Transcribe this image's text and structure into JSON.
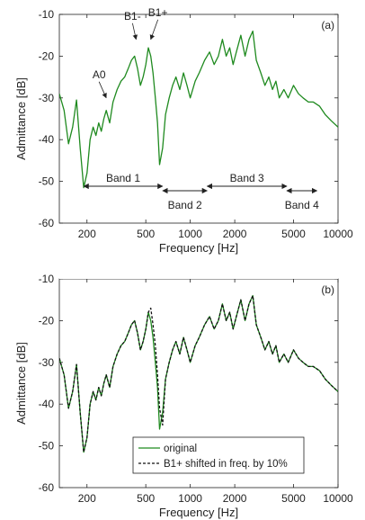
{
  "chart_data": [
    {
      "type": "line",
      "panel_label": "(a)",
      "ylabel": "Admittance [dB]",
      "xlabel": "",
      "x_scale": "log",
      "xlim": [
        130,
        10000
      ],
      "ylim": [
        -60,
        -10
      ],
      "xticks": [
        200,
        500,
        1000,
        2000,
        5000,
        10000
      ],
      "xtick_labels": [
        "200",
        "500",
        "1000",
        "2000",
        "5000",
        "10000"
      ],
      "yticks": [
        -60,
        -50,
        -40,
        -30,
        -20,
        -10
      ],
      "ytick_labels": [
        "-60",
        "-50",
        "-40",
        "-30",
        "-20",
        "-10"
      ],
      "series_color": "#1f8a1f",
      "series": [
        {
          "name": "",
          "x": [
            130,
            140,
            150,
            160,
            170,
            180,
            190,
            200,
            210,
            220,
            230,
            240,
            250,
            260,
            270,
            285,
            300,
            320,
            340,
            360,
            380,
            400,
            420,
            440,
            460,
            480,
            500,
            520,
            540,
            560,
            580,
            600,
            620,
            650,
            680,
            720,
            760,
            800,
            850,
            900,
            950,
            1000,
            1080,
            1150,
            1250,
            1350,
            1450,
            1550,
            1650,
            1750,
            1850,
            1950,
            2050,
            2200,
            2350,
            2500,
            2650,
            2800,
            3000,
            3200,
            3400,
            3600,
            3800,
            4000,
            4300,
            4600,
            5000,
            5400,
            5800,
            6300,
            6800,
            7500,
            8200,
            9000,
            10000
          ],
          "y": [
            -29,
            -33,
            -41,
            -37,
            -30.5,
            -42,
            -51.5,
            -48,
            -40,
            -37,
            -39,
            -36,
            -38,
            -35,
            -33,
            -36,
            -31,
            -28,
            -26,
            -25,
            -23,
            -21,
            -20,
            -23,
            -27,
            -25,
            -22,
            -18,
            -20,
            -24,
            -30,
            -36,
            -46,
            -42,
            -34,
            -30,
            -27,
            -25,
            -28,
            -24,
            -27,
            -30,
            -26,
            -24,
            -21,
            -19,
            -22,
            -20,
            -16,
            -20,
            -18,
            -22,
            -19,
            -15,
            -20,
            -16,
            -14,
            -21,
            -24,
            -27,
            -25,
            -28,
            -26,
            -30,
            -28,
            -30,
            -27,
            -29,
            -30,
            -31,
            -31,
            -32,
            -34,
            -35.5,
            -37
          ]
        }
      ],
      "annotations": [
        {
          "text": "B1-",
          "x": 430,
          "y": -16
        },
        {
          "text": "B1+",
          "x": 540,
          "y": -16
        },
        {
          "text": "A0",
          "x": 270,
          "y": -30
        }
      ],
      "bands": [
        {
          "label": "Band 1",
          "x1": 190,
          "x2": 650
        },
        {
          "label": "Band 2",
          "x1": 650,
          "x2": 1300
        },
        {
          "label": "Band 3",
          "x1": 1300,
          "x2": 4500
        },
        {
          "label": "Band 4",
          "x1": 4500,
          "x2": 7200
        }
      ],
      "cutoff_xlabel": "Frequency [Hz]"
    },
    {
      "type": "line",
      "panel_label": "(b)",
      "ylabel": "Admittance [dB]",
      "xlabel": "Frequency [Hz]",
      "x_scale": "log",
      "xlim": [
        130,
        10000
      ],
      "ylim": [
        -60,
        -10
      ],
      "xticks": [
        200,
        500,
        1000,
        2000,
        5000,
        10000
      ],
      "xtick_labels": [
        "200",
        "500",
        "1000",
        "2000",
        "5000",
        "10000"
      ],
      "yticks": [
        -60,
        -50,
        -40,
        -30,
        -20,
        -10
      ],
      "ytick_labels": [
        "-60",
        "-50",
        "-40",
        "-30",
        "-20",
        "-10"
      ],
      "legend_position": "bottom-center",
      "series": [
        {
          "name": "original",
          "color": "#1f8a1f",
          "style": "solid",
          "x": [
            130,
            140,
            150,
            160,
            170,
            180,
            190,
            200,
            210,
            220,
            230,
            240,
            250,
            260,
            270,
            285,
            300,
            320,
            340,
            360,
            380,
            400,
            420,
            440,
            460,
            480,
            500,
            520,
            540,
            560,
            580,
            600,
            620,
            650,
            680,
            720,
            760,
            800,
            850,
            900,
            950,
            1000,
            1080,
            1150,
            1250,
            1350,
            1450,
            1550,
            1650,
            1750,
            1850,
            1950,
            2050,
            2200,
            2350,
            2500,
            2650,
            2800,
            3000,
            3200,
            3400,
            3600,
            3800,
            4000,
            4300,
            4600,
            5000,
            5400,
            5800,
            6300,
            6800,
            7500,
            8200,
            9000,
            10000
          ],
          "y": [
            -29,
            -33,
            -41,
            -37,
            -30.5,
            -42,
            -51.5,
            -48,
            -40,
            -37,
            -39,
            -36,
            -38,
            -35,
            -33,
            -36,
            -31,
            -28,
            -26,
            -25,
            -23,
            -21,
            -20,
            -23,
            -27,
            -25,
            -22,
            -18,
            -20,
            -24,
            -30,
            -36,
            -46,
            -42,
            -34,
            -30,
            -27,
            -25,
            -28,
            -24,
            -27,
            -30,
            -26,
            -24,
            -21,
            -19,
            -22,
            -20,
            -16,
            -20,
            -18,
            -22,
            -19,
            -15,
            -20,
            -16,
            -14,
            -21,
            -24,
            -27,
            -25,
            -28,
            -26,
            -30,
            -28,
            -30,
            -27,
            -29,
            -30,
            -31,
            -31,
            -32,
            -34,
            -35.5,
            -37
          ]
        },
        {
          "name": "B1+ shifted in freq. by 10%",
          "color": "#111111",
          "style": "dashed",
          "x": [
            130,
            140,
            150,
            160,
            170,
            180,
            190,
            200,
            210,
            220,
            230,
            240,
            250,
            260,
            270,
            285,
            300,
            320,
            340,
            360,
            380,
            400,
            420,
            440,
            460,
            480,
            500,
            520,
            540,
            560,
            580,
            600,
            620,
            650,
            680,
            720,
            760,
            800,
            850,
            900,
            950,
            1000,
            1080,
            1150,
            1250,
            1350,
            1450,
            1550,
            1650,
            1750,
            1850,
            1950,
            2050,
            2200,
            2350,
            2500,
            2650,
            2800,
            3000,
            3200,
            3400,
            3600,
            3800,
            4000,
            4300,
            4600,
            5000,
            5400,
            5800,
            6300,
            6800,
            7500,
            8200,
            9000,
            10000
          ],
          "y": [
            -29,
            -33,
            -41,
            -37,
            -30.5,
            -42,
            -51.5,
            -48,
            -40,
            -37,
            -39,
            -36,
            -38,
            -35,
            -33,
            -36,
            -31,
            -28,
            -26,
            -25,
            -23,
            -21,
            -20,
            -23,
            -27,
            -25,
            -22,
            -18,
            -17,
            -21,
            -26,
            -33,
            -41,
            -45,
            -34,
            -30,
            -27,
            -25,
            -28,
            -24,
            -27,
            -30,
            -26,
            -24,
            -21,
            -19,
            -22,
            -20,
            -16,
            -20,
            -18,
            -22,
            -19,
            -15,
            -20,
            -16,
            -14,
            -21,
            -24,
            -27,
            -25,
            -28,
            -26,
            -30,
            -28,
            -30,
            -27,
            -29,
            -30,
            -31,
            -31,
            -32,
            -34,
            -35.5,
            -37
          ]
        }
      ]
    }
  ]
}
